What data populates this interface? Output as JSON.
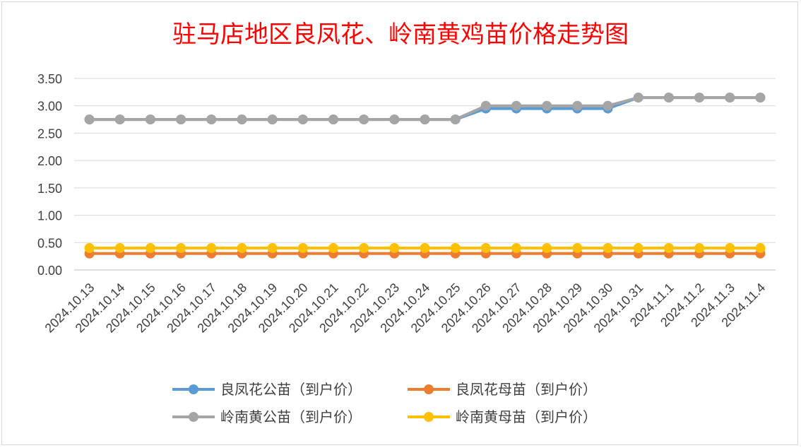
{
  "chart_data": {
    "type": "line",
    "title": "驻马店地区良凤花、岭南黄鸡苗价格走势图",
    "xlabel": "",
    "ylabel": "",
    "ylim": [
      0,
      3.5
    ],
    "y_ticks": [
      "0.00",
      "0.50",
      "1.00",
      "1.50",
      "2.00",
      "2.50",
      "3.00",
      "3.50"
    ],
    "grid": true,
    "legend_position": "bottom",
    "categories": [
      "2024.10.13",
      "2024.10.14",
      "2024.10.15",
      "2024.10.16",
      "2024.10.17",
      "2024.10.18",
      "2024.10.19",
      "2024.10.20",
      "2024.10.21",
      "2024.10.22",
      "2024.10.23",
      "2024.10.24",
      "2024.10.25",
      "2024.10.26",
      "2024.10.27",
      "2024.10.28",
      "2024.10.29",
      "2024.10.30",
      "2024.10.31",
      "2024.11.1",
      "2024.11.2",
      "2024.11.3",
      "2024.11.4"
    ],
    "series": [
      {
        "name": "良凤花公苗（到户价）",
        "color": "#5b9bd5",
        "values": [
          2.75,
          2.75,
          2.75,
          2.75,
          2.75,
          2.75,
          2.75,
          2.75,
          2.75,
          2.75,
          2.75,
          2.75,
          2.75,
          2.95,
          2.95,
          2.95,
          2.95,
          2.95,
          3.15,
          3.15,
          3.15,
          3.15,
          3.15
        ]
      },
      {
        "name": "良凤花母苗（到户价）",
        "color": "#ed7d31",
        "values": [
          0.3,
          0.3,
          0.3,
          0.3,
          0.3,
          0.3,
          0.3,
          0.3,
          0.3,
          0.3,
          0.3,
          0.3,
          0.3,
          0.3,
          0.3,
          0.3,
          0.3,
          0.3,
          0.3,
          0.3,
          0.3,
          0.3,
          0.3
        ]
      },
      {
        "name": "岭南黄公苗（到户价）",
        "color": "#a5a5a5",
        "values": [
          2.75,
          2.75,
          2.75,
          2.75,
          2.75,
          2.75,
          2.75,
          2.75,
          2.75,
          2.75,
          2.75,
          2.75,
          2.75,
          3.0,
          3.0,
          3.0,
          3.0,
          3.0,
          3.15,
          3.15,
          3.15,
          3.15,
          3.15
        ]
      },
      {
        "name": "岭南黄母苗（到户价）",
        "color": "#ffc000",
        "values": [
          0.4,
          0.4,
          0.4,
          0.4,
          0.4,
          0.4,
          0.4,
          0.4,
          0.4,
          0.4,
          0.4,
          0.4,
          0.4,
          0.4,
          0.4,
          0.4,
          0.4,
          0.4,
          0.4,
          0.4,
          0.4,
          0.4,
          0.4
        ]
      }
    ],
    "draw_order": [
      0,
      2,
      1,
      3
    ]
  }
}
